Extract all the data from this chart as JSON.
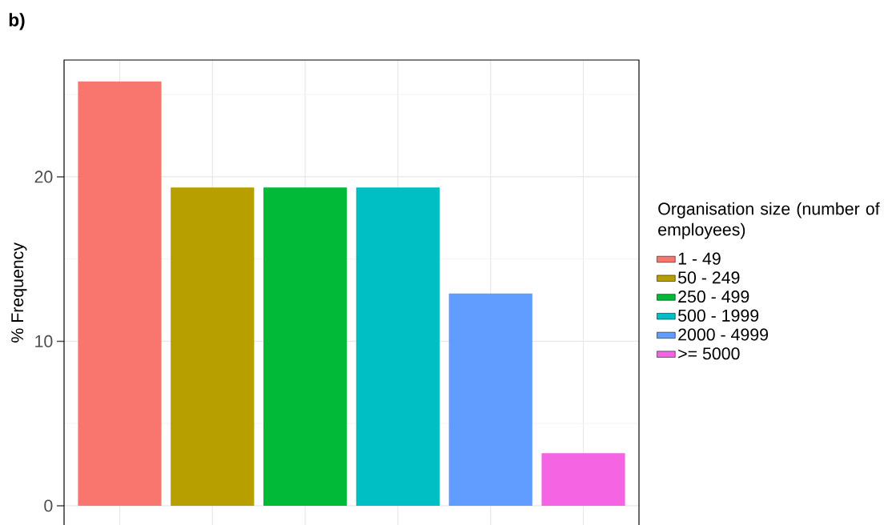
{
  "chart_data": {
    "type": "bar",
    "title": "b)",
    "ylabel": "% Frequency",
    "legend_title": "Organisation size (number of employees)",
    "categories": [
      null,
      null,
      null,
      null,
      null,
      null
    ],
    "series": [
      {
        "name": "1 - 49",
        "color": "#F8766D",
        "values": [
          25.8,
          null,
          null,
          null,
          null,
          null
        ]
      },
      {
        "name": "50 - 249",
        "color": "#B79F00",
        "values": [
          null,
          19.35,
          null,
          null,
          null,
          null
        ]
      },
      {
        "name": "250 - 499",
        "color": "#00BA38",
        "values": [
          null,
          null,
          19.35,
          null,
          null,
          null
        ]
      },
      {
        "name": "500 - 1999",
        "color": "#00BFC4",
        "values": [
          null,
          null,
          null,
          19.35,
          null,
          null
        ]
      },
      {
        "name": "2000 - 4999",
        "color": "#619CFF",
        "values": [
          null,
          null,
          null,
          null,
          12.9,
          null
        ]
      },
      {
        "name": ">= 5000",
        "color": "#F564E3",
        "values": [
          null,
          null,
          null,
          null,
          null,
          3.2
        ]
      }
    ],
    "ylim": [
      -1.2,
      27.1
    ],
    "yticks": [
      0,
      {
        "value": 5,
        "label": null
      },
      10,
      {
        "value": 15,
        "label": null
      },
      20,
      {
        "value": 25,
        "label": null
      }
    ],
    "grid": true,
    "legend": "right"
  }
}
